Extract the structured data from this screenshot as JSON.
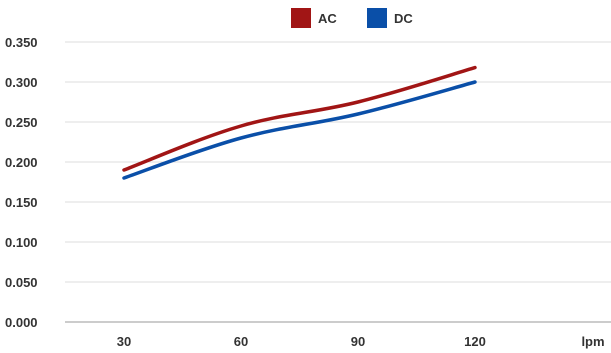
{
  "chart_data": {
    "type": "line",
    "x_unit": "lpm",
    "categories": [
      "30",
      "60",
      "90",
      "120"
    ],
    "x": [
      30,
      60,
      90,
      120
    ],
    "ylim": [
      0,
      0.35
    ],
    "yticks": [
      "0.000",
      "0.050",
      "0.100",
      "0.150",
      "0.200",
      "0.250",
      "0.300",
      "0.350"
    ],
    "grid": true,
    "legend_position": "top",
    "series": [
      {
        "name": "AC",
        "color": "#a11515",
        "values": [
          0.19,
          0.245,
          0.275,
          0.318
        ]
      },
      {
        "name": "DC",
        "color": "#0a4fa8",
        "values": [
          0.18,
          0.23,
          0.26,
          0.3
        ]
      }
    ]
  }
}
